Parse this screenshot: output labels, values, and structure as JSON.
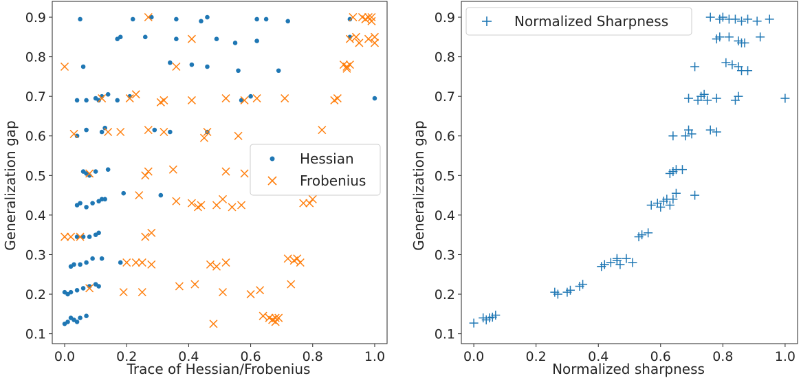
{
  "chart_data": [
    {
      "type": "scatter",
      "title": "",
      "xlabel": "Trace of Hessian/Frobenius",
      "ylabel": "Generalization gap",
      "xlim": [
        -0.04,
        1.04
      ],
      "ylim": [
        0.075,
        0.94
      ],
      "xticks": [
        "0.0",
        "0.2",
        "0.4",
        "0.6",
        "0.8",
        "1.0"
      ],
      "yticks": [
        "0.1",
        "0.2",
        "0.3",
        "0.4",
        "0.5",
        "0.6",
        "0.7",
        "0.8",
        "0.9"
      ],
      "legend_position": "center-right",
      "series": [
        {
          "name": "Hessian",
          "marker": "dot",
          "color": "#1f77b4",
          "points": [
            [
              0.0,
              0.125
            ],
            [
              0.01,
              0.13
            ],
            [
              0.02,
              0.14
            ],
            [
              0.03,
              0.135
            ],
            [
              0.04,
              0.13
            ],
            [
              0.05,
              0.14
            ],
            [
              0.07,
              0.145
            ],
            [
              0.0,
              0.205
            ],
            [
              0.01,
              0.2
            ],
            [
              0.02,
              0.205
            ],
            [
              0.04,
              0.21
            ],
            [
              0.06,
              0.215
            ],
            [
              0.08,
              0.22
            ],
            [
              0.1,
              0.225
            ],
            [
              0.11,
              0.22
            ],
            [
              0.02,
              0.27
            ],
            [
              0.03,
              0.275
            ],
            [
              0.05,
              0.275
            ],
            [
              0.07,
              0.28
            ],
            [
              0.09,
              0.29
            ],
            [
              0.12,
              0.29
            ],
            [
              0.18,
              0.28
            ],
            [
              0.04,
              0.345
            ],
            [
              0.06,
              0.345
            ],
            [
              0.08,
              0.345
            ],
            [
              0.1,
              0.35
            ],
            [
              0.11,
              0.355
            ],
            [
              0.04,
              0.425
            ],
            [
              0.05,
              0.43
            ],
            [
              0.07,
              0.42
            ],
            [
              0.09,
              0.43
            ],
            [
              0.11,
              0.435
            ],
            [
              0.12,
              0.44
            ],
            [
              0.13,
              0.44
            ],
            [
              0.19,
              0.455
            ],
            [
              0.31,
              0.45
            ],
            [
              0.06,
              0.51
            ],
            [
              0.07,
              0.505
            ],
            [
              0.08,
              0.5
            ],
            [
              0.1,
              0.51
            ],
            [
              0.14,
              0.515
            ],
            [
              0.04,
              0.6
            ],
            [
              0.07,
              0.615
            ],
            [
              0.12,
              0.61
            ],
            [
              0.13,
              0.62
            ],
            [
              0.29,
              0.615
            ],
            [
              0.34,
              0.61
            ],
            [
              0.46,
              0.61
            ],
            [
              0.04,
              0.69
            ],
            [
              0.07,
              0.69
            ],
            [
              0.1,
              0.695
            ],
            [
              0.11,
              0.69
            ],
            [
              0.12,
              0.7
            ],
            [
              0.14,
              0.705
            ],
            [
              0.17,
              0.69
            ],
            [
              0.21,
              0.7
            ],
            [
              0.57,
              0.69
            ],
            [
              0.6,
              0.7
            ],
            [
              0.06,
              0.775
            ],
            [
              0.34,
              0.785
            ],
            [
              0.41,
              0.78
            ],
            [
              0.46,
              0.775
            ],
            [
              0.56,
              0.765
            ],
            [
              0.69,
              0.765
            ],
            [
              0.17,
              0.845
            ],
            [
              0.18,
              0.85
            ],
            [
              0.26,
              0.85
            ],
            [
              0.36,
              0.845
            ],
            [
              0.49,
              0.845
            ],
            [
              0.55,
              0.835
            ],
            [
              0.62,
              0.84
            ],
            [
              0.05,
              0.895
            ],
            [
              0.22,
              0.895
            ],
            [
              0.28,
              0.9
            ],
            [
              0.36,
              0.895
            ],
            [
              0.44,
              0.89
            ],
            [
              0.46,
              0.9
            ],
            [
              0.62,
              0.895
            ],
            [
              0.65,
              0.895
            ],
            [
              0.72,
              0.89
            ],
            [
              1.0,
              0.695
            ],
            [
              0.92,
              0.85
            ],
            [
              0.92,
              0.895
            ]
          ]
        },
        {
          "name": "Frobenius",
          "marker": "x",
          "color": "#ff7f0e",
          "points": [
            [
              0.0,
              0.775
            ],
            [
              0.03,
              0.605
            ],
            [
              0.0,
              0.345
            ],
            [
              0.02,
              0.345
            ],
            [
              0.05,
              0.345
            ],
            [
              0.08,
              0.505
            ],
            [
              0.08,
              0.215
            ],
            [
              0.12,
              0.695
            ],
            [
              0.14,
              0.61
            ],
            [
              0.18,
              0.61
            ],
            [
              0.19,
              0.205
            ],
            [
              0.2,
              0.28
            ],
            [
              0.21,
              0.695
            ],
            [
              0.23,
              0.705
            ],
            [
              0.23,
              0.28
            ],
            [
              0.24,
              0.45
            ],
            [
              0.25,
              0.205
            ],
            [
              0.25,
              0.28
            ],
            [
              0.26,
              0.5
            ],
            [
              0.26,
              0.345
            ],
            [
              0.27,
              0.9
            ],
            [
              0.27,
              0.51
            ],
            [
              0.27,
              0.615
            ],
            [
              0.28,
              0.355
            ],
            [
              0.28,
              0.275
            ],
            [
              0.31,
              0.685
            ],
            [
              0.32,
              0.61
            ],
            [
              0.32,
              0.69
            ],
            [
              0.35,
              0.515
            ],
            [
              0.36,
              0.435
            ],
            [
              0.36,
              0.775
            ],
            [
              0.37,
              0.22
            ],
            [
              0.41,
              0.845
            ],
            [
              0.41,
              0.69
            ],
            [
              0.41,
              0.43
            ],
            [
              0.42,
              0.225
            ],
            [
              0.43,
              0.42
            ],
            [
              0.44,
              0.425
            ],
            [
              0.45,
              0.595
            ],
            [
              0.46,
              0.61
            ],
            [
              0.47,
              0.275
            ],
            [
              0.48,
              0.125
            ],
            [
              0.49,
              0.27
            ],
            [
              0.49,
              0.425
            ],
            [
              0.51,
              0.205
            ],
            [
              0.51,
              0.44
            ],
            [
              0.52,
              0.51
            ],
            [
              0.52,
              0.695
            ],
            [
              0.52,
              0.28
            ],
            [
              0.54,
              0.42
            ],
            [
              0.56,
              0.6
            ],
            [
              0.57,
              0.425
            ],
            [
              0.58,
              0.505
            ],
            [
              0.58,
              0.69
            ],
            [
              0.6,
              0.2
            ],
            [
              0.62,
              0.695
            ],
            [
              0.63,
              0.21
            ],
            [
              0.64,
              0.145
            ],
            [
              0.66,
              0.14
            ],
            [
              0.67,
              0.135
            ],
            [
              0.68,
              0.14
            ],
            [
              0.68,
              0.13
            ],
            [
              0.69,
              0.14
            ],
            [
              0.71,
              0.695
            ],
            [
              0.72,
              0.29
            ],
            [
              0.73,
              0.225
            ],
            [
              0.74,
              0.285
            ],
            [
              0.75,
              0.29
            ],
            [
              0.76,
              0.28
            ],
            [
              0.77,
              0.43
            ],
            [
              0.79,
              0.43
            ],
            [
              0.8,
              0.44
            ],
            [
              0.83,
              0.615
            ],
            [
              0.87,
              0.69
            ],
            [
              0.88,
              0.695
            ],
            [
              0.9,
              0.78
            ],
            [
              0.91,
              0.775
            ],
            [
              0.91,
              0.77
            ],
            [
              0.92,
              0.78
            ],
            [
              0.92,
              0.845
            ],
            [
              0.93,
              0.9
            ],
            [
              0.94,
              0.85
            ],
            [
              0.95,
              0.835
            ],
            [
              0.96,
              0.9
            ],
            [
              0.97,
              0.895
            ],
            [
              0.98,
              0.9
            ],
            [
              0.98,
              0.845
            ],
            [
              0.99,
              0.89
            ],
            [
              1.0,
              0.85
            ],
            [
              1.0,
              0.835
            ],
            [
              0.99,
              0.9
            ]
          ]
        }
      ]
    },
    {
      "type": "scatter",
      "title": "",
      "xlabel": "Normalized sharpness",
      "ylabel": "Generalization gap",
      "xlim": [
        -0.04,
        1.04
      ],
      "ylim": [
        0.075,
        0.94
      ],
      "xticks": [
        "0.0",
        "0.2",
        "0.4",
        "0.6",
        "0.8",
        "1.0"
      ],
      "yticks": [
        "0.1",
        "0.2",
        "0.3",
        "0.4",
        "0.5",
        "0.6",
        "0.7",
        "0.8",
        "0.9"
      ],
      "legend_position": "top-left",
      "series": [
        {
          "name": "Normalized Sharpness",
          "marker": "plus",
          "color": "#1f77b4",
          "points": [
            [
              0.0,
              0.127
            ],
            [
              0.03,
              0.14
            ],
            [
              0.04,
              0.135
            ],
            [
              0.05,
              0.14
            ],
            [
              0.06,
              0.142
            ],
            [
              0.07,
              0.147
            ],
            [
              0.26,
              0.205
            ],
            [
              0.27,
              0.2
            ],
            [
              0.3,
              0.205
            ],
            [
              0.31,
              0.21
            ],
            [
              0.34,
              0.22
            ],
            [
              0.35,
              0.225
            ],
            [
              0.41,
              0.27
            ],
            [
              0.42,
              0.275
            ],
            [
              0.44,
              0.28
            ],
            [
              0.46,
              0.285
            ],
            [
              0.47,
              0.275
            ],
            [
              0.49,
              0.29
            ],
            [
              0.51,
              0.28
            ],
            [
              0.46,
              0.29
            ],
            [
              0.53,
              0.345
            ],
            [
              0.54,
              0.35
            ],
            [
              0.56,
              0.355
            ],
            [
              0.57,
              0.425
            ],
            [
              0.59,
              0.43
            ],
            [
              0.6,
              0.42
            ],
            [
              0.61,
              0.435
            ],
            [
              0.62,
              0.44
            ],
            [
              0.63,
              0.425
            ],
            [
              0.64,
              0.44
            ],
            [
              0.65,
              0.455
            ],
            [
              0.71,
              0.45
            ],
            [
              0.63,
              0.505
            ],
            [
              0.64,
              0.51
            ],
            [
              0.65,
              0.515
            ],
            [
              0.67,
              0.515
            ],
            [
              0.64,
              0.6
            ],
            [
              0.68,
              0.6
            ],
            [
              0.69,
              0.615
            ],
            [
              0.7,
              0.605
            ],
            [
              0.76,
              0.615
            ],
            [
              0.78,
              0.61
            ],
            [
              0.69,
              0.695
            ],
            [
              0.72,
              0.69
            ],
            [
              0.73,
              0.7
            ],
            [
              0.74,
              0.705
            ],
            [
              0.75,
              0.69
            ],
            [
              0.78,
              0.695
            ],
            [
              0.84,
              0.69
            ],
            [
              0.85,
              0.7
            ],
            [
              1.0,
              0.695
            ],
            [
              0.71,
              0.775
            ],
            [
              0.81,
              0.785
            ],
            [
              0.83,
              0.78
            ],
            [
              0.85,
              0.775
            ],
            [
              0.88,
              0.765
            ],
            [
              0.86,
              0.765
            ],
            [
              0.78,
              0.845
            ],
            [
              0.79,
              0.85
            ],
            [
              0.82,
              0.85
            ],
            [
              0.85,
              0.84
            ],
            [
              0.86,
              0.835
            ],
            [
              0.87,
              0.835
            ],
            [
              0.92,
              0.85
            ],
            [
              0.76,
              0.9
            ],
            [
              0.79,
              0.895
            ],
            [
              0.8,
              0.9
            ],
            [
              0.82,
              0.895
            ],
            [
              0.84,
              0.895
            ],
            [
              0.86,
              0.89
            ],
            [
              0.88,
              0.895
            ],
            [
              0.91,
              0.89
            ],
            [
              0.95,
              0.895
            ]
          ]
        }
      ]
    }
  ]
}
